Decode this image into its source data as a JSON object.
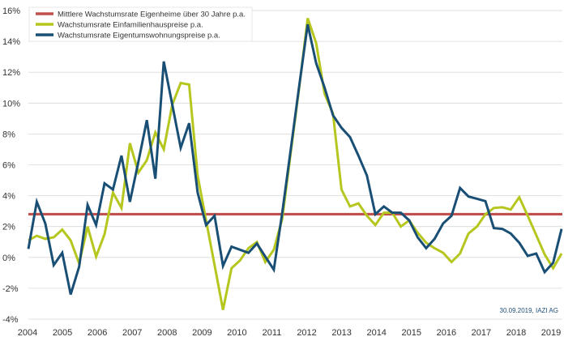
{
  "chart_data": {
    "type": "line",
    "title": "",
    "xlabel": "",
    "ylabel": "",
    "x_tick_labels": [
      "2004",
      "2005",
      "2006",
      "2007",
      "2008",
      "2009",
      "2010",
      "2011",
      "2012",
      "2013",
      "2014",
      "2015",
      "2016",
      "2017",
      "2018",
      "2019"
    ],
    "y_ticks": [
      16,
      14,
      12,
      10,
      8,
      6,
      4,
      2,
      0,
      -2,
      -4
    ],
    "y_tick_labels": [
      "16%",
      "14%",
      "12%",
      "10%",
      "8%",
      "6%",
      "4%",
      "2%",
      "0%",
      "-2%",
      "-4%"
    ],
    "ylim": [
      -4,
      16
    ],
    "xlim": [
      2004,
      2019
    ],
    "grid": true,
    "legend_position": "top-left",
    "source_note": "30.09.2019, IAZI AG",
    "series": [
      {
        "name": "Mittlere Wachstumsrate Eigenheime über 30 Jahre p.a.",
        "color": "#c0504d",
        "type": "constant",
        "value": 2.8
      },
      {
        "name": "Wachstumsrate Einfamilienhauspreise p.a.",
        "color": "#b5c71e",
        "values": [
          1.1,
          1.4,
          1.2,
          1.3,
          1.8,
          1.1,
          -0.4,
          2.0,
          0.05,
          1.5,
          4.2,
          3.2,
          7.4,
          5.5,
          6.3,
          8.1,
          7.0,
          9.9,
          11.3,
          11.2,
          5.3,
          2.4,
          -0.5,
          -3.4,
          -0.7,
          -0.2,
          0.6,
          1.0,
          -0.3,
          0.5,
          2.5,
          6.8,
          11.0,
          15.5,
          13.9,
          10.6,
          9.3,
          4.4,
          3.3,
          3.5,
          2.7,
          2.1,
          2.9,
          2.9,
          2.0,
          2.4,
          1.6,
          0.95,
          0.6,
          0.3,
          -0.3,
          0.25,
          1.55,
          2.0,
          2.8,
          3.2,
          3.25,
          3.1,
          3.9,
          2.7,
          1.45,
          0.2,
          -0.7,
          0.25
        ]
      },
      {
        "name": "Wachstumsrate Eigentumswohnungspreise p.a.",
        "color": "#1a4f75",
        "values": [
          0.55,
          3.6,
          2.2,
          -0.5,
          0.3,
          -2.4,
          -0.6,
          3.4,
          2.1,
          4.8,
          4.4,
          6.6,
          3.6,
          6.2,
          8.9,
          5.1,
          12.7,
          9.9,
          7.1,
          8.7,
          4.2,
          2.1,
          2.7,
          -0.55,
          0.7,
          0.5,
          0.3,
          0.9,
          0.05,
          -0.8,
          2.9,
          7.0,
          11.1,
          15.1,
          12.6,
          11.0,
          9.2,
          8.4,
          7.8,
          6.6,
          5.3,
          2.8,
          3.3,
          2.9,
          2.9,
          2.4,
          1.3,
          0.6,
          1.2,
          2.2,
          2.7,
          4.5,
          3.95,
          3.8,
          3.65,
          1.9,
          1.85,
          1.55,
          0.95,
          0.1,
          0.25,
          -0.95,
          -0.35,
          1.85
        ]
      }
    ]
  }
}
